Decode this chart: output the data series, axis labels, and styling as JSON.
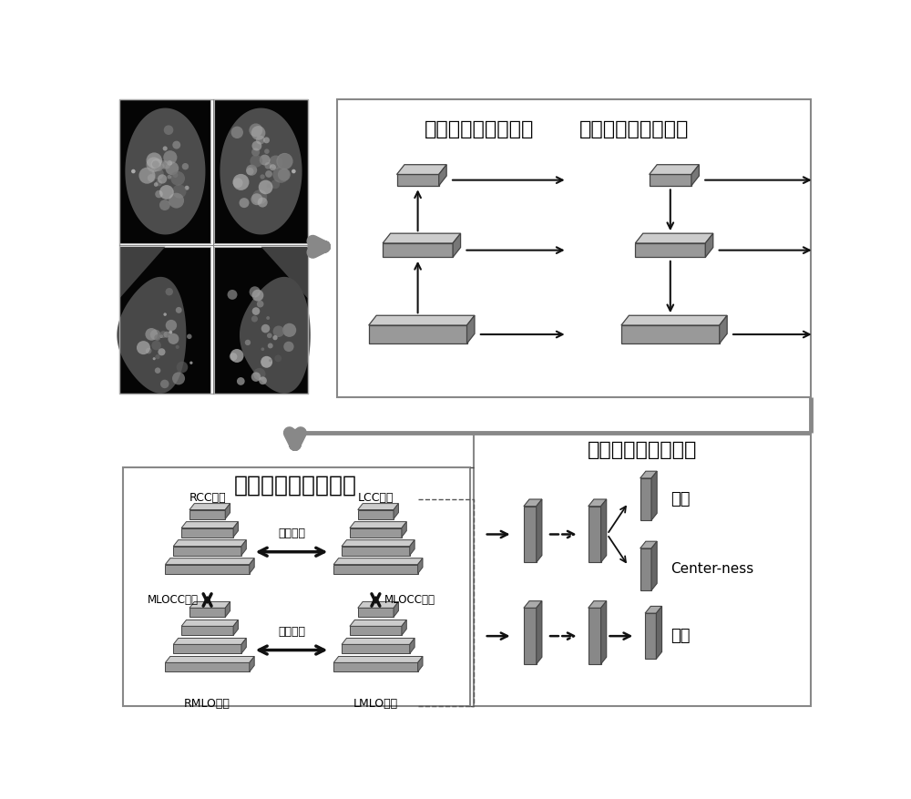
{
  "bg_color": "#ffffff",
  "face_color": "#999999",
  "top_color": "#cccccc",
  "side_color": "#777777",
  "dark_face": "#888888",
  "dark_side": "#666666",
  "edge_color": "#444444",
  "box_edge": "#888888",
  "arrow_color": "#111111",
  "fat_arrow_color": "#888888",
  "text_color": "#000000",
  "title_top_left": "多尺度特征提取网络",
  "title_top_right": "多尺度特征融合网络",
  "title_bottom_left": "多影像特征融合网络",
  "title_bottom_right": "病灶识别与回归网络",
  "label_rcc": "RCC特征",
  "label_lcc": "LCC特征",
  "label_rmlo": "RMLO特征",
  "label_lmlo": "LMLO特征",
  "label_lr_fusion1": "左右融合",
  "label_lr_fusion2": "左右融合",
  "label_mlocc1": "MLOCC融合",
  "label_mlocc2": "MLOCC融合",
  "label_classify": "分类",
  "label_centerness": "Center-ness",
  "label_regression": "回归"
}
